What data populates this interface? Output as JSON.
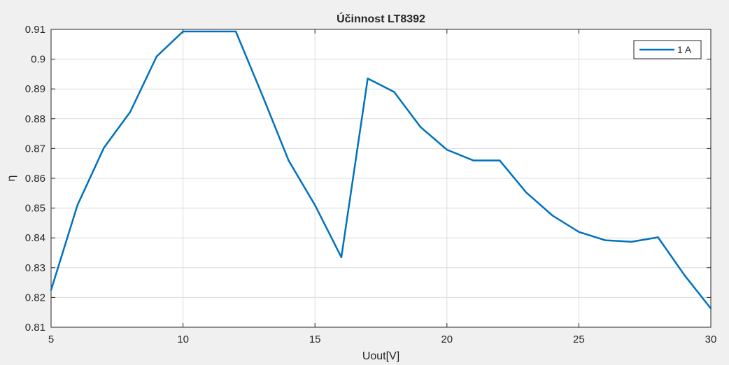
{
  "chart_data": {
    "type": "line",
    "title": "Účinnost LT8392",
    "xlabel": "Uout[V]",
    "ylabel": "η",
    "xlim": [
      5,
      30
    ],
    "ylim": [
      0.81,
      0.91
    ],
    "xticks": [
      5,
      10,
      15,
      20,
      25,
      30
    ],
    "yticks": [
      "0.81",
      "0.82",
      "0.83",
      "0.84",
      "0.85",
      "0.86",
      "0.87",
      "0.88",
      "0.89",
      "0.9",
      "0.91"
    ],
    "grid": true,
    "legend_position": "top-right",
    "series": [
      {
        "name": "1 A",
        "color": "#0072bd",
        "x": [
          5,
          6,
          7,
          8,
          9,
          10,
          11,
          12,
          13,
          14,
          15,
          16,
          17,
          18,
          19,
          20,
          21,
          22,
          23,
          24,
          25,
          26,
          27,
          28,
          29,
          30
        ],
        "y": [
          0.8225,
          0.851,
          0.8702,
          0.8823,
          0.9009,
          0.9093,
          0.9093,
          0.9093,
          0.888,
          0.866,
          0.851,
          0.8335,
          0.8935,
          0.889,
          0.8772,
          0.8696,
          0.866,
          0.866,
          0.8553,
          0.8475,
          0.842,
          0.8392,
          0.8387,
          0.8402,
          0.8275,
          0.8163
        ]
      }
    ]
  }
}
